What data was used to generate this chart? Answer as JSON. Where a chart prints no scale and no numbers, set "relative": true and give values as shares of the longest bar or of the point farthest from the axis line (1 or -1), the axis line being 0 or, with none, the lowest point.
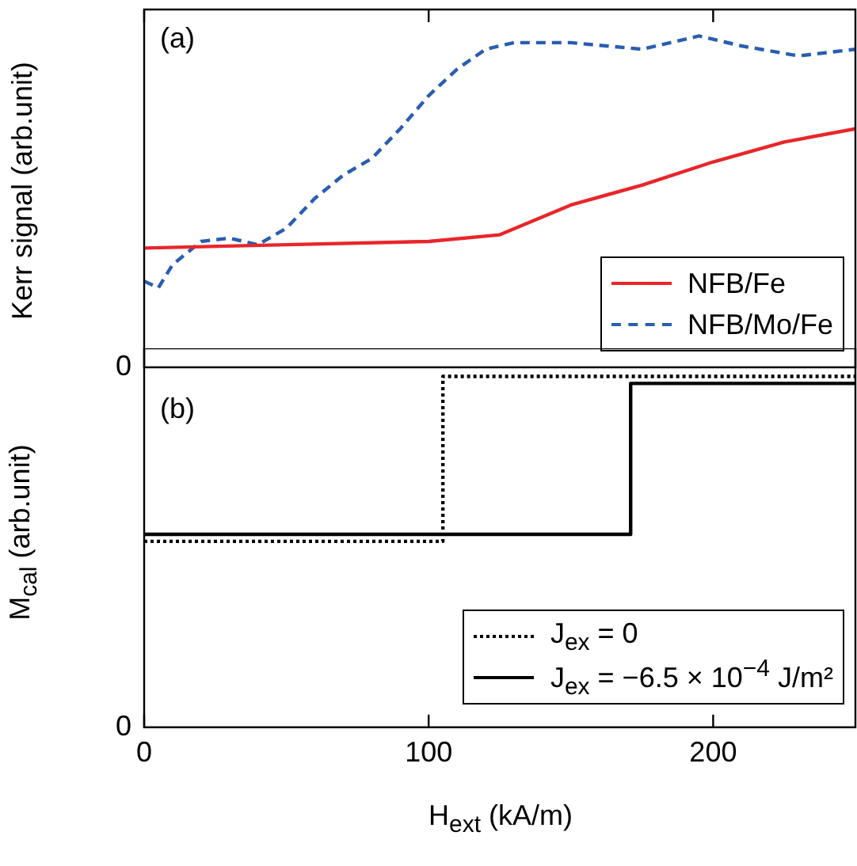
{
  "chart_data": [
    {
      "type": "line",
      "ylabel": "Kerr signal (arb.unit)",
      "relative": true,
      "xlim": [
        0,
        250
      ],
      "xticks": [
        0,
        100,
        200
      ],
      "tick_labels": false,
      "legend": "bottom right",
      "annotations": [
        "(a)",
        "0"
      ],
      "series": [
        {
          "name": "NFB/Fe",
          "color": "#e8262a",
          "line_style": "solid",
          "x": [
            0,
            50,
            100,
            125,
            150,
            175,
            200,
            225,
            250
          ],
          "values": [
            0.36,
            0.37,
            0.38,
            0.4,
            0.49,
            0.55,
            0.62,
            0.68,
            0.72
          ]
        },
        {
          "name": "NFB/Mo/Fe",
          "color": "#2a5db0",
          "line_style": "dashed",
          "x": [
            0,
            5,
            10,
            20,
            30,
            40,
            50,
            60,
            70,
            80,
            90,
            100,
            110,
            120,
            130,
            150,
            175,
            195,
            210,
            230,
            250
          ],
          "values": [
            0.26,
            0.24,
            0.31,
            0.38,
            0.39,
            0.37,
            0.42,
            0.51,
            0.58,
            0.63,
            0.72,
            0.82,
            0.9,
            0.96,
            0.98,
            0.98,
            0.96,
            1,
            0.97,
            0.94,
            0.96
          ]
        }
      ]
    },
    {
      "type": "step",
      "ylabel": "M$_{cal}$ (arb.unit)",
      "xlabel": "H$_{ext}$ (kA/m)",
      "relative": true,
      "xlim": [
        0,
        250
      ],
      "xticks": [
        0,
        100,
        200
      ],
      "tick_labels": "x",
      "legend": "bottom right",
      "annotations": [
        "(b)",
        "0"
      ],
      "series": [
        {
          "name": "J$_{ex}$ = 0",
          "color": "#000000",
          "line_style": "dotted",
          "x": [
            0,
            105,
            250
          ],
          "values": [
            0.53,
            1,
            1
          ]
        },
        {
          "name": "J$_{ex}$ = −6.5 × 10$^{−4}$ J/m²",
          "color": "#000000",
          "line_style": "solid",
          "x": [
            0,
            171,
            250
          ],
          "values": [
            0.55,
            0.98,
            0.98
          ]
        }
      ]
    }
  ]
}
